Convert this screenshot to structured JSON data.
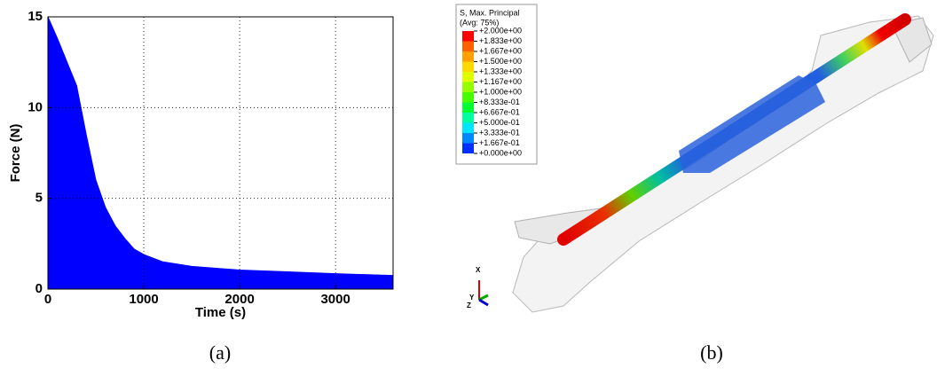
{
  "chart_data": {
    "type": "area",
    "xlabel": "Time (s)",
    "ylabel": "Force (N)",
    "x": [
      0,
      100,
      200,
      300,
      400,
      500,
      600,
      700,
      800,
      900,
      1000,
      1200,
      1500,
      2000,
      2500,
      3000,
      3600
    ],
    "values": [
      15,
      13.8,
      12.5,
      11.2,
      8.5,
      6,
      4.5,
      3.5,
      2.8,
      2.2,
      1.9,
      1.5,
      1.25,
      1.05,
      0.95,
      0.85,
      0.75
    ],
    "color": "#0000ff",
    "xlim": [
      0,
      3600
    ],
    "xticks": [
      0,
      1000,
      2000,
      3000
    ],
    "ylim": [
      0,
      15
    ],
    "yticks": [
      0,
      5,
      10,
      15
    ],
    "grid": true
  },
  "panel_b": {
    "legend": {
      "title": "S, Max. Principal",
      "subtitle": "(Avg: 75%)",
      "labels": [
        "+2.000e+00",
        "+1.833e+00",
        "+1.667e+00",
        "+1.500e+00",
        "+1.333e+00",
        "+1.167e+00",
        "+1.000e+00",
        "+8.333e-01",
        "+6.667e-01",
        "+5.000e-01",
        "+3.333e-01",
        "+1.667e-01",
        "+0.000e+00"
      ],
      "colors": [
        "#ff0000",
        "#ff6000",
        "#ffa000",
        "#ffd800",
        "#ddff00",
        "#93ff00",
        "#46ff00",
        "#00ff30",
        "#00ff9e",
        "#00e5ff",
        "#0088ff",
        "#0030ff"
      ]
    },
    "triad": [
      "X",
      "Y",
      "Z"
    ]
  },
  "captions": [
    "(a)",
    "(b)"
  ]
}
